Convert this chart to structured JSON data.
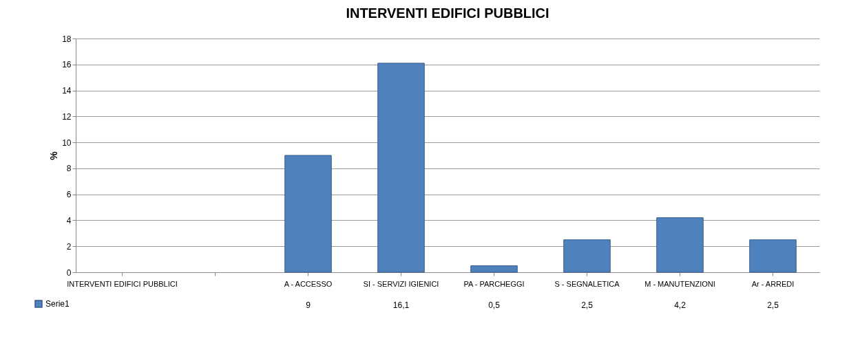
{
  "chart_data": {
    "type": "bar",
    "title": "INTERVENTI EDIFICI PUBBLICI",
    "ylabel": "%",
    "categories": [
      "INTERVENTI EDIFICI PUBBLICI",
      null,
      "A - ACCESSO",
      "SI - SERVIZI IGIENICI",
      "PA - PARCHEGGI",
      "S - SEGNALETICA",
      "M - MANUTENZIONI",
      "Ar - ARREDI"
    ],
    "series": [
      {
        "name": "Serie1",
        "color": "#4f81bd",
        "values": [
          null,
          null,
          9,
          16.1,
          0.5,
          2.5,
          4.2,
          2.5
        ],
        "value_labels": [
          null,
          null,
          "9",
          "16,1",
          "0,5",
          "2,5",
          "4,2",
          "2,5"
        ]
      }
    ],
    "ylim": [
      0,
      18
    ],
    "yticks": [
      0,
      2,
      4,
      6,
      8,
      10,
      12,
      14,
      16,
      18
    ],
    "grid": "y",
    "legend": "bottom left"
  }
}
